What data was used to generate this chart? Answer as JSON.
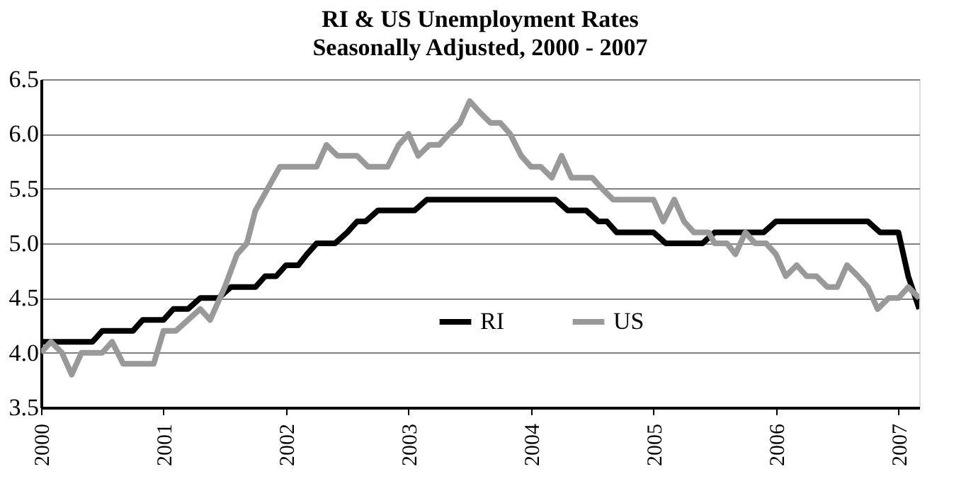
{
  "chart_data": {
    "type": "line",
    "title": "RI & US Unemployment Rates",
    "subtitle": "Seasonally Adjusted, 2000 - 2007",
    "xlim": [
      2000,
      2007.17
    ],
    "xticks": [
      2000,
      2001,
      2002,
      2003,
      2004,
      2005,
      2006,
      2007
    ],
    "ylim": [
      3.5,
      6.5
    ],
    "yticks": [
      3.5,
      {
        "value": 4,
        "label": "4.0"
      },
      4.5,
      {
        "value": 5,
        "label": "5.0"
      },
      5.5,
      {
        "value": 6,
        "label": "6.0"
      },
      6.5
    ],
    "grid": "y",
    "legend": "bottom",
    "marker": "none",
    "line_style": "solid",
    "series": [
      {
        "name": "RI",
        "color": "#000000",
        "x": [
          2000,
          2000.42,
          2000.5,
          2000.75,
          2000.83,
          2001,
          2001.08,
          2001.2,
          2001.3,
          2001.45,
          2001.55,
          2001.75,
          2001.83,
          2001.92,
          2002,
          2002.1,
          2002.17,
          2002.25,
          2002.4,
          2002.5,
          2002.58,
          2002.65,
          2002.75,
          2003.05,
          2003.15,
          2004.2,
          2004.3,
          2004.45,
          2004.55,
          2004.62,
          2004.7,
          2005.0,
          2005.1,
          2005.4,
          2005.5,
          2005.9,
          2006.0,
          2006.75,
          2006.85,
          2007.0,
          2007.08,
          2007.17
        ],
        "values": [
          4.1,
          4.1,
          4.2,
          4.2,
          4.3,
          4.3,
          4.4,
          4.4,
          4.5,
          4.5,
          4.6,
          4.6,
          4.7,
          4.7,
          4.8,
          4.8,
          4.9,
          5.0,
          5.0,
          5.1,
          5.2,
          5.2,
          5.3,
          5.3,
          5.4,
          5.4,
          5.3,
          5.3,
          5.2,
          5.2,
          5.1,
          5.1,
          5.0,
          5.0,
          5.1,
          5.1,
          5.2,
          5.2,
          5.1,
          5.1,
          4.7,
          4.4
        ]
      },
      {
        "name": "US",
        "color": "#999999",
        "x": [
          2000,
          2000.08,
          2000.17,
          2000.25,
          2000.33,
          2000.5,
          2000.58,
          2000.67,
          2000.92,
          2001.0,
          2001.1,
          2001.2,
          2001.3,
          2001.38,
          2001.5,
          2001.6,
          2001.68,
          2001.75,
          2001.85,
          2001.95,
          2002.25,
          2002.33,
          2002.42,
          2002.58,
          2002.67,
          2002.83,
          2002.92,
          2003.0,
          2003.08,
          2003.17,
          2003.25,
          2003.33,
          2003.42,
          2003.5,
          2003.58,
          2003.67,
          2003.75,
          2003.83,
          2003.92,
          2004.0,
          2004.08,
          2004.17,
          2004.25,
          2004.33,
          2004.5,
          2004.58,
          2004.67,
          2005.0,
          2005.08,
          2005.17,
          2005.25,
          2005.33,
          2005.45,
          2005.5,
          2005.6,
          2005.67,
          2005.75,
          2005.83,
          2005.92,
          2006.0,
          2006.08,
          2006.17,
          2006.25,
          2006.33,
          2006.42,
          2006.5,
          2006.58,
          2006.67,
          2006.75,
          2006.83,
          2006.92,
          2007.0,
          2007.08,
          2007.17
        ],
        "values": [
          4.0,
          4.1,
          4.0,
          3.8,
          4.0,
          4.0,
          4.1,
          3.9,
          3.9,
          4.2,
          4.2,
          4.3,
          4.4,
          4.3,
          4.6,
          4.9,
          5.0,
          5.3,
          5.5,
          5.7,
          5.7,
          5.9,
          5.8,
          5.8,
          5.7,
          5.7,
          5.9,
          6.0,
          5.8,
          5.9,
          5.9,
          6.0,
          6.1,
          6.3,
          6.2,
          6.1,
          6.1,
          6.0,
          5.8,
          5.7,
          5.7,
          5.6,
          5.8,
          5.6,
          5.6,
          5.5,
          5.4,
          5.4,
          5.2,
          5.4,
          5.2,
          5.1,
          5.1,
          5.0,
          5.0,
          4.9,
          5.1,
          5.0,
          5.0,
          4.9,
          4.7,
          4.8,
          4.7,
          4.7,
          4.6,
          4.6,
          4.8,
          4.7,
          4.6,
          4.4,
          4.5,
          4.5,
          4.6,
          4.5
        ]
      }
    ]
  }
}
